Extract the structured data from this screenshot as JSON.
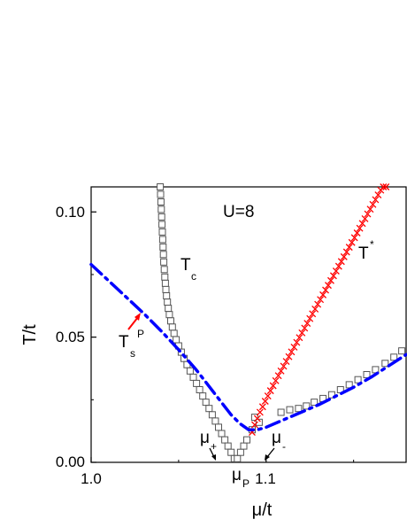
{
  "chart_data": {
    "type": "line",
    "xlabel": "μ/t",
    "ylabel": "T/t",
    "xlim": [
      1.0,
      1.18
    ],
    "ylim": [
      0.0,
      0.11
    ],
    "x_ticks": [
      {
        "value": 1.0,
        "label": "1.0"
      },
      {
        "value": 1.1,
        "label": "1.1"
      }
    ],
    "y_ticks": [
      {
        "value": 0.0,
        "label": "0.00"
      },
      {
        "value": 0.05,
        "label": "0.05"
      },
      {
        "value": 0.1,
        "label": "0.10"
      }
    ],
    "annotations": {
      "u_label": "U=8",
      "tc_main": "T",
      "tc_sub": "c",
      "tstar_main": "T",
      "tstar_sup": "*",
      "tsp_main": "T",
      "tsp_sub": "s",
      "tsp_sup": "P",
      "mu_plus_main": "μ",
      "mu_plus_sub": "+",
      "mu_minus_main": "μ",
      "mu_minus_sub": "-",
      "mu_p_main": "μ",
      "mu_p_sub": "P"
    },
    "series": [
      {
        "marker": "open-square",
        "color": "#555555",
        "x": [
          1.0395,
          1.0397,
          1.0399,
          1.0401,
          1.0403,
          1.0405,
          1.0407,
          1.0409,
          1.0411,
          1.0413,
          1.0415,
          1.0418,
          1.0421,
          1.0424,
          1.0427,
          1.0431,
          1.0436,
          1.0441,
          1.0447,
          1.0455,
          1.0464,
          1.0474,
          1.0486,
          1.05,
          1.0515,
          1.0531,
          1.0548,
          1.0566,
          1.0584,
          1.0602,
          1.062,
          1.0638,
          1.0656,
          1.0674,
          1.0692,
          1.071,
          1.0728,
          1.0746,
          1.0764,
          1.0782,
          1.08,
          1.0818,
          1.0836,
          1.0854,
          1.0872,
          1.089
        ],
        "y": [
          0.11,
          0.107,
          0.104,
          0.101,
          0.098,
          0.095,
          0.092,
          0.089,
          0.086,
          0.083,
          0.08,
          0.077,
          0.074,
          0.0715,
          0.069,
          0.0665,
          0.064,
          0.0615,
          0.059,
          0.0565,
          0.054,
          0.0515,
          0.049,
          0.0465,
          0.044,
          0.0415,
          0.039,
          0.0365,
          0.034,
          0.0315,
          0.029,
          0.0265,
          0.024,
          0.0215,
          0.019,
          0.0165,
          0.014,
          0.0115,
          0.009,
          0.0065,
          0.004,
          0.0015,
          0.0015,
          0.004,
          0.0065,
          0.009
        ]
      },
      {
        "marker": "open-square",
        "color": "#555555",
        "x": [
          1.092,
          1.0935,
          1.096,
          1.1085,
          1.1135,
          1.1185,
          1.123,
          1.1275,
          1.1325,
          1.1375,
          1.1425,
          1.1475,
          1.1525,
          1.1575,
          1.1625,
          1.168,
          1.173,
          1.1775
        ],
        "y": [
          0.013,
          0.018,
          0.016,
          0.02,
          0.021,
          0.0215,
          0.0225,
          0.024,
          0.0255,
          0.027,
          0.029,
          0.031,
          0.033,
          0.035,
          0.037,
          0.0395,
          0.042,
          0.0445
        ]
      },
      {
        "marker": "cross",
        "color": "#ff0000",
        "x": [
          1.092,
          1.0935,
          1.095,
          1.0965,
          1.098,
          1.0995,
          1.101,
          1.1025,
          1.104,
          1.1055,
          1.107,
          1.1085,
          1.11,
          1.1115,
          1.113,
          1.1145,
          1.116,
          1.1175,
          1.119,
          1.1205,
          1.122,
          1.1235,
          1.125,
          1.1265,
          1.128,
          1.1295,
          1.131,
          1.1325,
          1.134,
          1.1355,
          1.137,
          1.1385,
          1.14,
          1.1415,
          1.143,
          1.1445,
          1.146,
          1.1475,
          1.149,
          1.1505,
          1.152,
          1.1535,
          1.155,
          1.1565,
          1.158,
          1.1595,
          1.161,
          1.1625,
          1.164,
          1.1655,
          1.167,
          1.1685
        ],
        "y": [
          0.012,
          0.015,
          0.0175,
          0.02,
          0.0222,
          0.0244,
          0.0265,
          0.0286,
          0.0306,
          0.0326,
          0.0346,
          0.0365,
          0.0384,
          0.0403,
          0.0422,
          0.0441,
          0.046,
          0.0479,
          0.0498,
          0.0517,
          0.0536,
          0.0555,
          0.0574,
          0.0593,
          0.0612,
          0.0631,
          0.065,
          0.0669,
          0.0688,
          0.0707,
          0.0726,
          0.0745,
          0.0764,
          0.0783,
          0.0802,
          0.0821,
          0.084,
          0.0859,
          0.0878,
          0.0897,
          0.0916,
          0.0935,
          0.0954,
          0.0973,
          0.0992,
          0.1011,
          0.103,
          0.1049,
          0.1068,
          0.1087,
          0.11,
          0.11
        ]
      },
      {
        "marker": "dash-dot-line",
        "color": "#0000ff",
        "x": [
          1.0,
          1.01,
          1.02,
          1.03,
          1.04,
          1.05,
          1.06,
          1.065,
          1.07,
          1.075,
          1.08,
          1.085,
          1.09,
          1.095,
          1.1,
          1.11,
          1.12,
          1.13,
          1.14,
          1.15,
          1.16,
          1.17,
          1.18
        ],
        "y": [
          0.079,
          0.0725,
          0.066,
          0.0595,
          0.0525,
          0.045,
          0.037,
          0.0325,
          0.028,
          0.0235,
          0.019,
          0.0155,
          0.013,
          0.013,
          0.014,
          0.017,
          0.02,
          0.023,
          0.0265,
          0.03,
          0.034,
          0.0385,
          0.043
        ]
      }
    ]
  }
}
